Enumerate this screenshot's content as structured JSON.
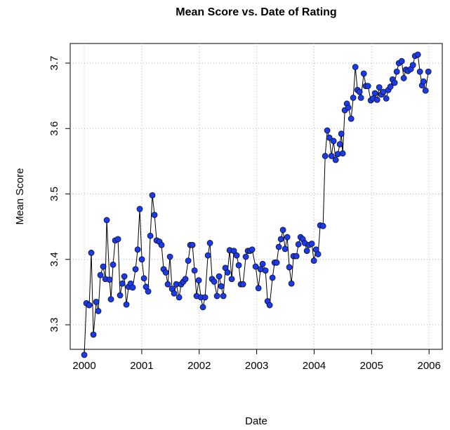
{
  "chart_data": {
    "type": "line",
    "title": "Mean Score vs. Date of Rating",
    "x_label": "Date",
    "y_label": "Mean Score",
    "xlim": [
      1999.755,
      2006.23
    ],
    "ylim": [
      3.2625,
      3.73
    ],
    "xticks": [
      2000,
      2001,
      2002,
      2003,
      2004,
      2005,
      2006
    ],
    "yticks": [
      3.3,
      3.4,
      3.5,
      3.6,
      3.7
    ],
    "grid": true,
    "markers": true,
    "series": [
      {
        "color": "#1a3af0",
        "x": [
          2000,
          2000.037,
          2000.086,
          2000.122,
          2000.159,
          2000.208,
          2000.244,
          2000.281,
          2000.33,
          2000.367,
          2000.391,
          2000.44,
          2000.464,
          2000.501,
          2000.538,
          2000.587,
          2000.623,
          2000.66,
          2000.697,
          2000.733,
          2000.77,
          2000.807,
          2000.843,
          2000.892,
          2000.929,
          2000.965,
          2001.002,
          2001.039,
          2001.075,
          2001.112,
          2001.149,
          2001.185,
          2001.222,
          2001.259,
          2001.308,
          2001.344,
          2001.381,
          2001.418,
          2001.454,
          2001.491,
          2001.528,
          2001.564,
          2001.601,
          2001.65,
          2001.686,
          2001.723,
          2001.76,
          2001.809,
          2001.845,
          2001.882,
          2001.919,
          2001.955,
          2001.992,
          2002.029,
          2002.065,
          2002.102,
          2002.151,
          2002.187,
          2002.224,
          2002.261,
          2002.31,
          2002.346,
          2002.383,
          2002.42,
          2002.456,
          2002.493,
          2002.53,
          2002.566,
          2002.603,
          2002.652,
          2002.688,
          2002.725,
          2002.762,
          2002.811,
          2002.847,
          2002.884,
          2002.921,
          2002.982,
          2003.031,
          2003.067,
          2003.104,
          2003.153,
          2003.19,
          2003.226,
          2003.275,
          2003.312,
          2003.348,
          2003.385,
          2003.422,
          2003.458,
          2003.495,
          2003.532,
          2003.568,
          2003.605,
          2003.642,
          2003.691,
          2003.727,
          2003.764,
          2003.801,
          2003.837,
          2003.874,
          2003.911,
          2003.959,
          2003.996,
          2004.033,
          2004.069,
          2004.106,
          2004.155,
          2004.192,
          2004.228,
          2004.265,
          2004.302,
          2004.338,
          2004.375,
          2004.412,
          2004.448,
          2004.473,
          2004.497,
          2004.534,
          2004.57,
          2004.595,
          2004.644,
          2004.68,
          2004.717,
          2004.754,
          2004.79,
          2004.815,
          2004.864,
          2004.9,
          2004.937,
          2004.986,
          2005.023,
          2005.059,
          2005.096,
          2005.133,
          2005.169,
          2005.206,
          2005.255,
          2005.291,
          2005.328,
          2005.365,
          2005.401,
          2005.438,
          2005.475,
          2005.524,
          2005.56,
          2005.597,
          2005.634,
          2005.683,
          2005.719,
          2005.756,
          2005.805,
          2005.841,
          2005.878,
          2005.902,
          2005.939,
          2005.988
        ],
        "values": [
          3.254,
          3.333,
          3.33,
          3.41,
          3.285,
          3.335,
          3.321,
          3.376,
          3.389,
          3.37,
          3.46,
          3.369,
          3.339,
          3.392,
          3.429,
          3.431,
          3.345,
          3.363,
          3.374,
          3.331,
          3.358,
          3.363,
          3.357,
          3.385,
          3.415,
          3.477,
          3.4,
          3.371,
          3.358,
          3.351,
          3.436,
          3.498,
          3.468,
          3.429,
          3.427,
          3.422,
          3.385,
          3.38,
          3.362,
          3.404,
          3.355,
          3.348,
          3.362,
          3.342,
          3.362,
          3.366,
          3.37,
          3.398,
          3.422,
          3.422,
          3.383,
          3.344,
          3.368,
          3.342,
          3.327,
          3.342,
          3.406,
          3.425,
          3.37,
          3.366,
          3.344,
          3.374,
          3.359,
          3.344,
          3.387,
          3.38,
          3.414,
          3.37,
          3.413,
          3.406,
          3.391,
          3.362,
          3.362,
          3.404,
          3.413,
          3.413,
          3.415,
          3.389,
          3.356,
          3.385,
          3.393,
          3.383,
          3.336,
          3.33,
          3.372,
          3.395,
          3.395,
          3.419,
          3.431,
          3.445,
          3.416,
          3.434,
          3.388,
          3.363,
          3.405,
          3.405,
          3.423,
          3.434,
          3.431,
          3.425,
          3.413,
          3.422,
          3.424,
          3.398,
          3.415,
          3.408,
          3.452,
          3.451,
          3.558,
          3.597,
          3.586,
          3.558,
          3.581,
          3.552,
          3.561,
          3.576,
          3.592,
          3.562,
          3.628,
          3.638,
          3.632,
          3.615,
          3.647,
          3.694,
          3.659,
          3.656,
          3.647,
          3.684,
          3.665,
          3.665,
          3.643,
          3.646,
          3.654,
          3.644,
          3.663,
          3.652,
          3.656,
          3.646,
          3.659,
          3.664,
          3.675,
          3.67,
          3.687,
          3.7,
          3.703,
          3.677,
          3.69,
          3.688,
          3.691,
          3.697,
          3.711,
          3.713,
          3.687,
          3.666,
          3.672,
          3.658,
          3.687
        ]
      }
    ]
  }
}
